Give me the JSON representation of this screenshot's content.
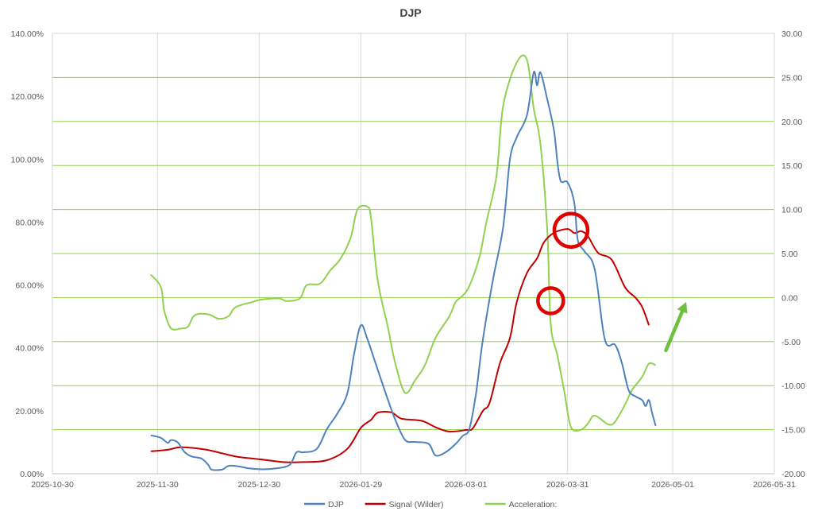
{
  "chart_data": {
    "type": "line",
    "title": "DJP",
    "x_axis": {
      "type": "date",
      "min": "2025-10-30",
      "max": "2026-05-31",
      "ticks": [
        "2025-10-30",
        "2025-11-30",
        "2025-12-30",
        "2026-01-29",
        "2026-03-01",
        "2026-03-31",
        "2026-05-01",
        "2026-05-31"
      ]
    },
    "y_left": {
      "min": 0,
      "max": 140,
      "step": 20,
      "format": "percent",
      "tick_labels": [
        "0.00%",
        "20.00%",
        "40.00%",
        "60.00%",
        "80.00%",
        "100.00%",
        "120.00%",
        "140.00%"
      ]
    },
    "y_right": {
      "min": -20,
      "max": 30,
      "step": 5,
      "tick_labels": [
        "-20.00",
        "-15.00",
        "-10.00",
        "-5.00",
        "0.00",
        "5.00",
        "10.00",
        "15.00",
        "20.00",
        "25.00",
        "30.00"
      ]
    },
    "grid": {
      "vertical": true,
      "horizontal_right_axis": true
    },
    "legend_position": "bottom",
    "series": [
      {
        "name": "DJP",
        "axis": "left",
        "color": "#4f81bd",
        "points": [
          [
            "2025-11-28",
            12.2
          ],
          [
            "2025-12-01",
            11.4
          ],
          [
            "2025-12-03",
            9.8
          ],
          [
            "2025-12-04",
            10.7
          ],
          [
            "2025-12-06",
            9.9
          ],
          [
            "2025-12-08",
            6.9
          ],
          [
            "2025-12-10",
            5.5
          ],
          [
            "2025-12-13",
            4.8
          ],
          [
            "2025-12-15",
            2.8
          ],
          [
            "2025-12-16",
            1.3
          ],
          [
            "2025-12-19",
            1.3
          ],
          [
            "2025-12-21",
            2.5
          ],
          [
            "2025-12-24",
            2.3
          ],
          [
            "2025-12-27",
            1.7
          ],
          [
            "2025-12-31",
            1.4
          ],
          [
            "2026-01-04",
            1.7
          ],
          [
            "2026-01-08",
            2.8
          ],
          [
            "2026-01-10",
            6.8
          ],
          [
            "2026-01-12",
            6.8
          ],
          [
            "2026-01-16",
            7.9
          ],
          [
            "2026-01-19",
            14.2
          ],
          [
            "2026-01-22",
            19.0
          ],
          [
            "2026-01-25",
            25.5
          ],
          [
            "2026-01-27",
            38.0
          ],
          [
            "2026-01-29",
            47.2
          ],
          [
            "2026-01-31",
            42.6
          ],
          [
            "2026-02-03",
            33.0
          ],
          [
            "2026-02-06",
            23.5
          ],
          [
            "2026-02-08",
            17.6
          ],
          [
            "2026-02-11",
            10.8
          ],
          [
            "2026-02-14",
            10.1
          ],
          [
            "2026-02-18",
            9.5
          ],
          [
            "2026-02-20",
            5.8
          ],
          [
            "2026-02-23",
            6.8
          ],
          [
            "2026-02-26",
            9.5
          ],
          [
            "2026-02-28",
            12.0
          ],
          [
            "2026-03-02",
            14.2
          ],
          [
            "2026-03-04",
            25.7
          ],
          [
            "2026-03-06",
            42.6
          ],
          [
            "2026-03-09",
            61.8
          ],
          [
            "2026-03-12",
            78.5
          ],
          [
            "2026-03-14",
            100.0
          ],
          [
            "2026-03-16",
            107.0
          ],
          [
            "2026-03-19",
            114.0
          ],
          [
            "2026-03-21",
            127.6
          ],
          [
            "2026-03-22",
            123.5
          ],
          [
            "2026-03-23",
            127.6
          ],
          [
            "2026-03-25",
            119.0
          ],
          [
            "2026-03-27",
            109.0
          ],
          [
            "2026-03-28",
            99.0
          ],
          [
            "2026-03-29",
            93.0
          ],
          [
            "2026-03-31",
            92.6
          ],
          [
            "2026-04-02",
            86.0
          ],
          [
            "2026-04-03",
            74.3
          ],
          [
            "2026-04-05",
            70.7
          ],
          [
            "2026-04-08",
            65.0
          ],
          [
            "2026-04-11",
            42.6
          ],
          [
            "2026-04-14",
            41.0
          ],
          [
            "2026-04-16",
            35.2
          ],
          [
            "2026-04-18",
            26.6
          ],
          [
            "2026-04-20",
            24.6
          ],
          [
            "2026-04-22",
            23.4
          ],
          [
            "2026-04-23",
            21.5
          ],
          [
            "2026-04-24",
            23.4
          ],
          [
            "2026-04-25",
            19.0
          ],
          [
            "2026-04-26",
            15.2
          ]
        ]
      },
      {
        "name": "Signal (Wilder)",
        "axis": "left",
        "color": "#c00000",
        "points": [
          [
            "2025-11-28",
            7.1
          ],
          [
            "2025-12-03",
            7.6
          ],
          [
            "2025-12-07",
            8.4
          ],
          [
            "2025-12-14",
            7.7
          ],
          [
            "2025-12-19",
            6.5
          ],
          [
            "2025-12-24",
            5.3
          ],
          [
            "2025-12-31",
            4.5
          ],
          [
            "2026-01-06",
            3.7
          ],
          [
            "2026-01-12",
            3.7
          ],
          [
            "2026-01-19",
            4.3
          ],
          [
            "2026-01-25",
            7.9
          ],
          [
            "2026-01-29",
            14.6
          ],
          [
            "2026-02-01",
            17.1
          ],
          [
            "2026-02-03",
            19.4
          ],
          [
            "2026-02-07",
            19.5
          ],
          [
            "2026-02-10",
            17.5
          ],
          [
            "2026-02-16",
            16.8
          ],
          [
            "2026-02-20",
            14.8
          ],
          [
            "2026-02-24",
            13.4
          ],
          [
            "2026-03-01",
            13.9
          ],
          [
            "2026-03-03",
            14.4
          ],
          [
            "2026-03-06",
            20.0
          ],
          [
            "2026-03-08",
            22.6
          ],
          [
            "2026-03-11",
            35.0
          ],
          [
            "2026-03-14",
            43.2
          ],
          [
            "2026-03-16",
            54.6
          ],
          [
            "2026-03-19",
            63.8
          ],
          [
            "2026-03-22",
            68.5
          ],
          [
            "2026-03-24",
            73.5
          ],
          [
            "2026-03-27",
            76.6
          ],
          [
            "2026-03-31",
            77.8
          ],
          [
            "2026-04-02",
            76.5
          ],
          [
            "2026-04-04",
            77.1
          ],
          [
            "2026-04-06",
            75.5
          ],
          [
            "2026-04-09",
            70.2
          ],
          [
            "2026-04-13",
            68.0
          ],
          [
            "2026-04-17",
            59.2
          ],
          [
            "2026-04-20",
            56.0
          ],
          [
            "2026-04-22",
            53.0
          ],
          [
            "2026-04-24",
            47.2
          ]
        ]
      },
      {
        "name": "Acceleration:",
        "axis": "right",
        "color": "#92d050",
        "points": [
          [
            "2025-11-28",
            2.6
          ],
          [
            "2025-12-01",
            1.2
          ],
          [
            "2025-12-02",
            -1.5
          ],
          [
            "2025-12-04",
            -3.5
          ],
          [
            "2025-12-07",
            -3.5
          ],
          [
            "2025-12-09",
            -3.3
          ],
          [
            "2025-12-11",
            -2.0
          ],
          [
            "2025-12-15",
            -1.9
          ],
          [
            "2025-12-18",
            -2.4
          ],
          [
            "2025-12-21",
            -2.1
          ],
          [
            "2025-12-23",
            -1.1
          ],
          [
            "2025-12-28",
            -0.5
          ],
          [
            "2025-12-31",
            -0.2
          ],
          [
            "2026-01-05",
            -0.1
          ],
          [
            "2026-01-07",
            -0.4
          ],
          [
            "2026-01-11",
            -0.1
          ],
          [
            "2026-01-13",
            1.4
          ],
          [
            "2026-01-17",
            1.6
          ],
          [
            "2026-01-20",
            3.1
          ],
          [
            "2026-01-23",
            4.4
          ],
          [
            "2026-01-26",
            6.8
          ],
          [
            "2026-01-28",
            10.0
          ],
          [
            "2026-01-31",
            10.3
          ],
          [
            "2026-02-01",
            9.0
          ],
          [
            "2026-02-03",
            1.9
          ],
          [
            "2026-02-06",
            -3.4
          ],
          [
            "2026-02-08",
            -7.2
          ],
          [
            "2026-02-11",
            -10.8
          ],
          [
            "2026-02-14",
            -9.4
          ],
          [
            "2026-02-17",
            -7.6
          ],
          [
            "2026-02-20",
            -4.6
          ],
          [
            "2026-02-24",
            -2.2
          ],
          [
            "2026-02-26",
            -0.5
          ],
          [
            "2026-02-28",
            0.2
          ],
          [
            "2026-03-02",
            1.3
          ],
          [
            "2026-03-05",
            4.6
          ],
          [
            "2026-03-07",
            8.5
          ],
          [
            "2026-03-10",
            13.8
          ],
          [
            "2026-03-12",
            21.8
          ],
          [
            "2026-03-16",
            26.7
          ],
          [
            "2026-03-19",
            27.0
          ],
          [
            "2026-03-21",
            21.5
          ],
          [
            "2026-03-23",
            17.4
          ],
          [
            "2026-03-25",
            7.6
          ],
          [
            "2026-03-26",
            -2.9
          ],
          [
            "2026-03-28",
            -6.6
          ],
          [
            "2026-03-30",
            -10.6
          ],
          [
            "2026-04-01",
            -14.7
          ],
          [
            "2026-04-04",
            -15.0
          ],
          [
            "2026-04-06",
            -14.3
          ],
          [
            "2026-04-08",
            -13.4
          ],
          [
            "2026-04-12",
            -14.4
          ],
          [
            "2026-04-14",
            -14.1
          ],
          [
            "2026-04-17",
            -12.1
          ],
          [
            "2026-04-19",
            -10.5
          ],
          [
            "2026-04-22",
            -9.0
          ],
          [
            "2026-04-24",
            -7.5
          ],
          [
            "2026-04-26",
            -7.7
          ]
        ]
      }
    ],
    "annotations": [
      {
        "type": "circle",
        "color": "#e00000",
        "at": [
          "2026-04-01",
          77.4
        ],
        "axis": "left"
      },
      {
        "type": "circle",
        "color": "#e00000",
        "at": [
          "2026-03-26",
          55.0
        ],
        "axis": "left"
      },
      {
        "type": "arrow",
        "color": "#70c040",
        "from": [
          "2026-04-29",
          -6.0
        ],
        "to": [
          "2026-05-05",
          -0.5
        ],
        "axis": "right"
      }
    ]
  }
}
